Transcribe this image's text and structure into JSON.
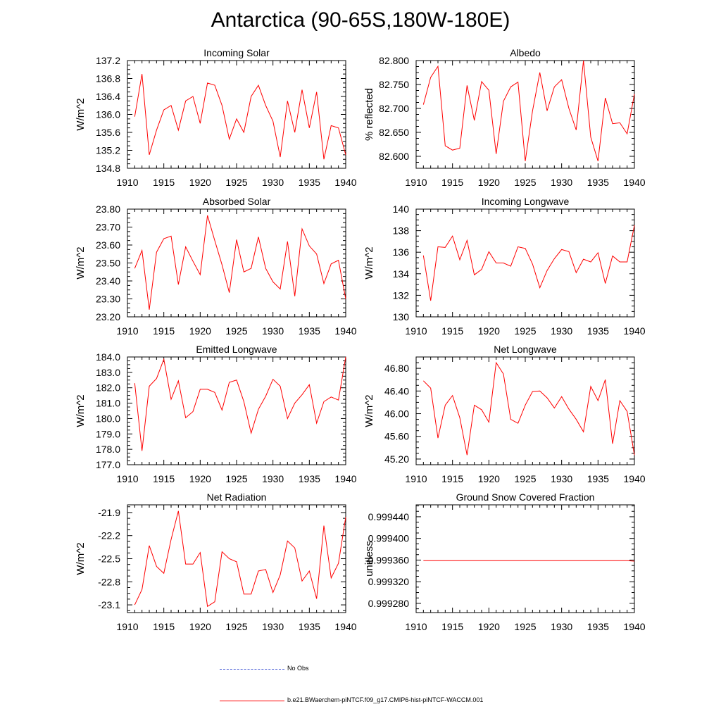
{
  "title": "Antarctica (90-65S,180W-180E)",
  "colors": {
    "series": "#ff0000",
    "obs": "#4a5fd6",
    "axis": "#000000"
  },
  "legend": {
    "obs_label": "No Obs",
    "model_label": "b.e21.BWaerchem-piNTCF.f09_g17.CMIP6-hist-piNTCF-WACCM.001"
  },
  "chart_data": [
    {
      "type": "line",
      "title": "Incoming Solar",
      "xlabel": "",
      "ylabel": "W/m^2",
      "xlim": [
        1910,
        1940
      ],
      "ylim": [
        134.8,
        137.2
      ],
      "xticks": [
        1910,
        1915,
        1920,
        1925,
        1930,
        1935,
        1940
      ],
      "yticks": [
        134.8,
        135.2,
        135.6,
        136.0,
        136.4,
        136.8,
        137.2
      ],
      "ytick_labels": [
        "134.8",
        "135.2",
        "135.6",
        "136.0",
        "136.4",
        "136.8",
        "137.2"
      ],
      "series": [
        {
          "x": [
            1911,
            1912,
            1913,
            1914,
            1915,
            1916,
            1917,
            1918,
            1919,
            1920,
            1921,
            1922,
            1923,
            1924,
            1925,
            1926,
            1927,
            1928,
            1929,
            1930,
            1931,
            1932,
            1933,
            1934,
            1935,
            1936,
            1937,
            1938,
            1939,
            1940
          ],
          "values": [
            135.95,
            136.9,
            135.1,
            135.65,
            136.1,
            136.2,
            135.65,
            136.3,
            136.4,
            135.8,
            136.7,
            136.65,
            136.2,
            135.45,
            135.9,
            135.6,
            136.4,
            136.65,
            136.2,
            135.85,
            135.05,
            136.3,
            135.6,
            136.55,
            135.7,
            136.5,
            135.0,
            135.75,
            135.7,
            135.1
          ]
        }
      ]
    },
    {
      "type": "line",
      "title": "Albedo",
      "xlabel": "",
      "ylabel": "% reflected",
      "xlim": [
        1910,
        1940
      ],
      "ylim": [
        82.575,
        82.8
      ],
      "xticks": [
        1910,
        1915,
        1920,
        1925,
        1930,
        1935,
        1940
      ],
      "yticks": [
        82.6,
        82.65,
        82.7,
        82.75,
        82.8
      ],
      "ytick_labels": [
        "82.600",
        "82.650",
        "82.700",
        "82.750",
        "82.800"
      ],
      "series": [
        {
          "x": [
            1911,
            1912,
            1913,
            1914,
            1915,
            1916,
            1917,
            1918,
            1919,
            1920,
            1921,
            1922,
            1923,
            1924,
            1925,
            1926,
            1927,
            1928,
            1929,
            1930,
            1931,
            1932,
            1933,
            1934,
            1935,
            1936,
            1937,
            1938,
            1939,
            1940
          ],
          "values": [
            82.708,
            82.765,
            82.788,
            82.622,
            82.613,
            82.617,
            82.748,
            82.675,
            82.756,
            82.738,
            82.605,
            82.715,
            82.745,
            82.755,
            82.59,
            82.695,
            82.775,
            82.695,
            82.745,
            82.76,
            82.7,
            82.655,
            82.8,
            82.64,
            82.59,
            82.722,
            82.668,
            82.67,
            82.647,
            82.73
          ]
        }
      ]
    },
    {
      "type": "line",
      "title": "Absorbed Solar",
      "xlabel": "",
      "ylabel": "W/m^2",
      "xlim": [
        1910,
        1940
      ],
      "ylim": [
        23.2,
        23.8
      ],
      "xticks": [
        1910,
        1915,
        1920,
        1925,
        1930,
        1935,
        1940
      ],
      "yticks": [
        23.2,
        23.3,
        23.4,
        23.5,
        23.6,
        23.7,
        23.8
      ],
      "ytick_labels": [
        "23.20",
        "23.30",
        "23.40",
        "23.50",
        "23.60",
        "23.70",
        "23.80"
      ],
      "series": [
        {
          "x": [
            1911,
            1912,
            1913,
            1914,
            1915,
            1916,
            1917,
            1918,
            1919,
            1920,
            1921,
            1922,
            1923,
            1924,
            1925,
            1926,
            1927,
            1928,
            1929,
            1930,
            1931,
            1932,
            1933,
            1934,
            1935,
            1936,
            1937,
            1938,
            1939,
            1940
          ],
          "values": [
            23.47,
            23.57,
            23.24,
            23.56,
            23.635,
            23.65,
            23.38,
            23.59,
            23.51,
            23.435,
            23.765,
            23.625,
            23.49,
            23.335,
            23.63,
            23.45,
            23.47,
            23.645,
            23.47,
            23.395,
            23.355,
            23.62,
            23.315,
            23.69,
            23.595,
            23.55,
            23.385,
            23.495,
            23.515,
            23.3
          ]
        }
      ]
    },
    {
      "type": "line",
      "title": "Incoming Longwave",
      "xlabel": "",
      "ylabel": "W/m^2",
      "xlim": [
        1910,
        1940
      ],
      "ylim": [
        130,
        140
      ],
      "xticks": [
        1910,
        1915,
        1920,
        1925,
        1930,
        1935,
        1940
      ],
      "yticks": [
        130,
        132,
        134,
        136,
        138,
        140
      ],
      "ytick_labels": [
        "130",
        "132",
        "134",
        "136",
        "138",
        "140"
      ],
      "series": [
        {
          "x": [
            1911,
            1912,
            1913,
            1914,
            1915,
            1916,
            1917,
            1918,
            1919,
            1920,
            1921,
            1922,
            1923,
            1924,
            1925,
            1926,
            1927,
            1928,
            1929,
            1930,
            1931,
            1932,
            1933,
            1934,
            1935,
            1936,
            1937,
            1938,
            1939,
            1940
          ],
          "values": [
            135.7,
            131.5,
            136.5,
            136.45,
            137.5,
            135.3,
            137.1,
            133.9,
            134.4,
            136.05,
            135.0,
            135.0,
            134.7,
            136.5,
            136.35,
            134.9,
            132.7,
            134.3,
            135.4,
            136.25,
            136.05,
            134.1,
            135.35,
            135.1,
            135.95,
            133.1,
            135.65,
            135.1,
            135.1,
            138.5
          ]
        }
      ]
    },
    {
      "type": "line",
      "title": "Emitted Longwave",
      "xlabel": "",
      "ylabel": "W/m^2",
      "xlim": [
        1910,
        1940
      ],
      "ylim": [
        177.0,
        184.0
      ],
      "xticks": [
        1910,
        1915,
        1920,
        1925,
        1930,
        1935,
        1940
      ],
      "yticks": [
        177,
        178,
        179,
        180,
        181,
        182,
        183,
        184
      ],
      "ytick_labels": [
        "177.0",
        "178.0",
        "179.0",
        "180.0",
        "181.0",
        "182.0",
        "183.0",
        "184.0"
      ],
      "series": [
        {
          "x": [
            1911,
            1912,
            1913,
            1914,
            1915,
            1916,
            1917,
            1918,
            1919,
            1920,
            1921,
            1922,
            1923,
            1924,
            1925,
            1926,
            1927,
            1928,
            1929,
            1930,
            1931,
            1932,
            1933,
            1934,
            1935,
            1936,
            1937,
            1938,
            1939,
            1940
          ],
          "values": [
            182.3,
            177.9,
            182.1,
            182.6,
            183.85,
            181.25,
            182.45,
            180.05,
            180.45,
            181.9,
            181.9,
            181.7,
            180.55,
            182.35,
            182.5,
            181.1,
            179.05,
            180.6,
            181.45,
            182.55,
            182.1,
            180.0,
            181.0,
            181.55,
            182.2,
            179.7,
            181.1,
            181.4,
            181.2,
            184.0
          ]
        }
      ]
    },
    {
      "type": "line",
      "title": "Net Longwave",
      "xlabel": "",
      "ylabel": "W/m^2",
      "xlim": [
        1910,
        1940
      ],
      "ylim": [
        45.1,
        47.0
      ],
      "xticks": [
        1910,
        1915,
        1920,
        1925,
        1930,
        1935,
        1940
      ],
      "yticks": [
        45.2,
        45.6,
        46.0,
        46.4,
        46.8
      ],
      "ytick_labels": [
        "45.20",
        "45.60",
        "46.00",
        "46.40",
        "46.80"
      ],
      "series": [
        {
          "x": [
            1911,
            1912,
            1913,
            1914,
            1915,
            1916,
            1917,
            1918,
            1919,
            1920,
            1921,
            1922,
            1923,
            1924,
            1925,
            1926,
            1927,
            1928,
            1929,
            1930,
            1931,
            1932,
            1933,
            1934,
            1935,
            1936,
            1937,
            1938,
            1939,
            1940
          ],
          "values": [
            46.58,
            46.45,
            45.57,
            46.15,
            46.32,
            45.93,
            45.27,
            46.15,
            46.07,
            45.85,
            46.9,
            46.7,
            45.9,
            45.83,
            46.15,
            46.39,
            46.4,
            46.28,
            46.1,
            46.3,
            46.08,
            45.9,
            45.68,
            46.48,
            46.23,
            46.6,
            45.47,
            46.23,
            46.04,
            45.27
          ]
        }
      ]
    },
    {
      "type": "line",
      "title": "Net Radiation",
      "xlabel": "",
      "ylabel": "W/m^2",
      "xlim": [
        1910,
        1940
      ],
      "ylim": [
        -23.2,
        -21.8
      ],
      "xticks": [
        1910,
        1915,
        1920,
        1925,
        1930,
        1935,
        1940
      ],
      "yticks": [
        -23.1,
        -22.8,
        -22.5,
        -22.2,
        -21.9
      ],
      "ytick_labels": [
        "-23.1",
        "-22.8",
        "-22.5",
        "-22.2",
        "-21.9"
      ],
      "series": [
        {
          "x": [
            1911,
            1912,
            1913,
            1914,
            1915,
            1916,
            1917,
            1918,
            1919,
            1920,
            1921,
            1922,
            1923,
            1924,
            1925,
            1926,
            1927,
            1928,
            1929,
            1930,
            1931,
            1932,
            1933,
            1934,
            1935,
            1936,
            1937,
            1938,
            1939,
            1940
          ],
          "values": [
            -23.1,
            -22.9,
            -22.33,
            -22.6,
            -22.69,
            -22.25,
            -21.88,
            -22.57,
            -22.57,
            -22.42,
            -23.12,
            -23.06,
            -22.41,
            -22.5,
            -22.54,
            -22.96,
            -22.96,
            -22.66,
            -22.64,
            -22.94,
            -22.71,
            -22.27,
            -22.36,
            -22.79,
            -22.66,
            -23.02,
            -22.07,
            -22.75,
            -22.56,
            -21.96
          ]
        }
      ]
    },
    {
      "type": "line",
      "title": "Ground Snow Covered Fraction",
      "xlabel": "",
      "ylabel": "unitless",
      "xlim": [
        1910,
        1940
      ],
      "ylim": [
        0.999263,
        0.999462
      ],
      "xticks": [
        1910,
        1915,
        1920,
        1925,
        1930,
        1935,
        1940
      ],
      "yticks": [
        0.99928,
        0.99932,
        0.99936,
        0.9994,
        0.99944
      ],
      "ytick_labels": [
        "0.999280",
        "0.999320",
        "0.999360",
        "0.999400",
        "0.999440"
      ],
      "series": [
        {
          "x": [
            1911,
            1912,
            1913,
            1914,
            1915,
            1916,
            1917,
            1918,
            1919,
            1920,
            1921,
            1922,
            1923,
            1924,
            1925,
            1926,
            1927,
            1928,
            1929,
            1930,
            1931,
            1932,
            1933,
            1934,
            1935,
            1936,
            1937,
            1938,
            1939,
            1940
          ],
          "values": [
            0.999359,
            0.999359,
            0.999359,
            0.999359,
            0.999359,
            0.999359,
            0.999359,
            0.999359,
            0.999359,
            0.999359,
            0.999359,
            0.999359,
            0.999359,
            0.999359,
            0.999359,
            0.999359,
            0.999359,
            0.999359,
            0.999359,
            0.999359,
            0.999359,
            0.999359,
            0.999359,
            0.999359,
            0.999359,
            0.999359,
            0.999359,
            0.999359,
            0.999359,
            0.999358
          ]
        }
      ]
    }
  ]
}
